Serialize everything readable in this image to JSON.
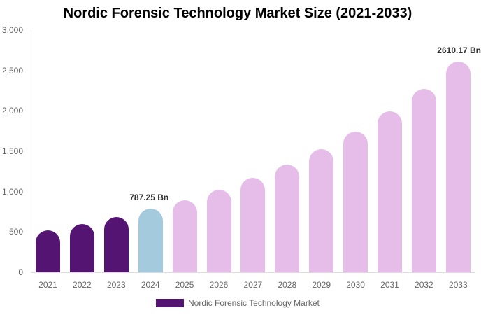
{
  "chart_data": {
    "type": "bar",
    "title": "Nordic Forensic Technology Market Size (2021-2033)",
    "xlabel": "",
    "ylabel": "",
    "ylim": [
      0,
      3000
    ],
    "yticks": [
      "0",
      "500",
      "1,000",
      "1,500",
      "2,000",
      "2,500",
      "3,000"
    ],
    "categories": [
      "2021",
      "2022",
      "2023",
      "2024",
      "2025",
      "2026",
      "2027",
      "2028",
      "2029",
      "2030",
      "2031",
      "2032",
      "2033"
    ],
    "series": [
      {
        "name": "Nordic Forensic Technology Market",
        "values": [
          520,
          598,
          685,
          787.25,
          893,
          1023,
          1170,
          1335,
          1526,
          1743,
          1995,
          2272,
          2610.17
        ]
      }
    ],
    "bar_colors": [
      "#541472",
      "#541472",
      "#541472",
      "#a4cade",
      "#e6bce8",
      "#e6bce8",
      "#e6bce8",
      "#e6bce8",
      "#e6bce8",
      "#e6bce8",
      "#e6bce8",
      "#e6bce8",
      "#e6bce8"
    ],
    "annotations": [
      {
        "index": 3,
        "text": "787.25 Bn"
      },
      {
        "index": 12,
        "text": "2610.17 Bn"
      }
    ],
    "legend": {
      "label": "Nordic Forensic Technology Market",
      "color": "#541472",
      "position": "bottom"
    },
    "grid": false
  }
}
